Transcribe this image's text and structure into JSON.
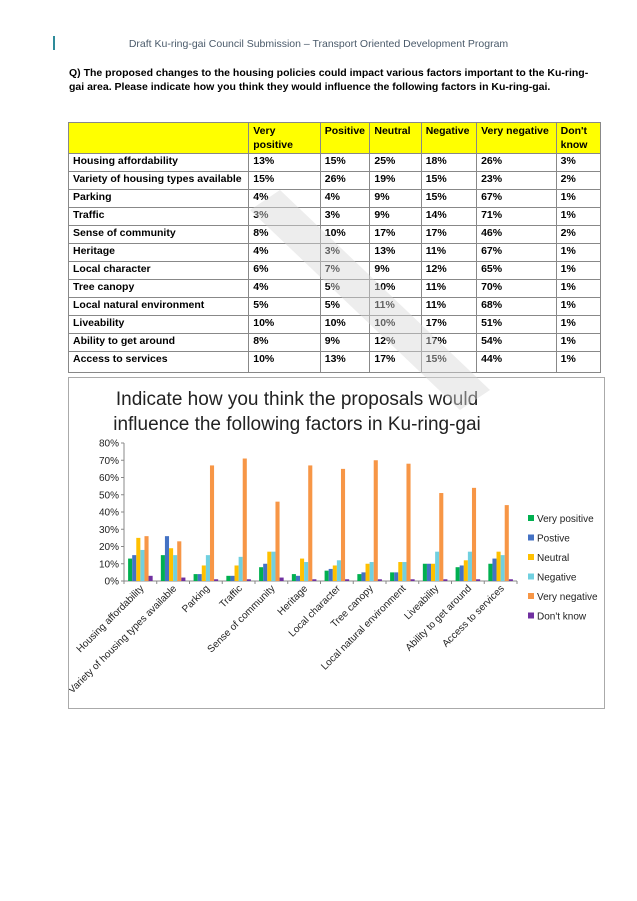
{
  "header": "Draft Ku-ring-gai Council Submission – Transport Oriented Development Program",
  "question": "Q) The proposed changes to the housing policies could impact various factors important to the Ku-ring-gai area. Please indicate how you think they would influence the following factors in Ku-ring-gai.",
  "table": {
    "columns": [
      "",
      "Very positive",
      "Positive",
      "Neutral",
      "Negative",
      "Very negative",
      "Don't know"
    ],
    "rows": [
      {
        "factor": "Housing affordability",
        "values": [
          "13%",
          "15%",
          "25%",
          "18%",
          "26%",
          "3%"
        ]
      },
      {
        "factor": "Variety of housing types available",
        "values": [
          "15%",
          "26%",
          "19%",
          "15%",
          "23%",
          "2%"
        ]
      },
      {
        "factor": "Parking",
        "values": [
          "4%",
          "4%",
          "9%",
          "15%",
          "67%",
          "1%"
        ]
      },
      {
        "factor": "Traffic",
        "values": [
          "3%",
          "3%",
          "9%",
          "14%",
          "71%",
          "1%"
        ]
      },
      {
        "factor": "Sense of community",
        "values": [
          "8%",
          "10%",
          "17%",
          "17%",
          "46%",
          "2%"
        ]
      },
      {
        "factor": "Heritage",
        "values": [
          "4%",
          "3%",
          "13%",
          "11%",
          "67%",
          "1%"
        ]
      },
      {
        "factor": "Local character",
        "values": [
          "6%",
          "7%",
          "9%",
          "12%",
          "65%",
          "1%"
        ]
      },
      {
        "factor": "Tree canopy",
        "values": [
          "4%",
          "5%",
          "10%",
          "11%",
          "70%",
          "1%"
        ]
      },
      {
        "factor": "Local natural environment",
        "values": [
          "5%",
          "5%",
          "11%",
          "11%",
          "68%",
          "1%"
        ]
      },
      {
        "factor": "Liveability",
        "values": [
          "10%",
          "10%",
          "10%",
          "17%",
          "51%",
          "1%"
        ]
      },
      {
        "factor": "Ability to get around",
        "values": [
          "8%",
          "9%",
          "12%",
          "17%",
          "54%",
          "1%"
        ]
      },
      {
        "factor": "Access to services",
        "values": [
          "10%",
          "13%",
          "17%",
          "15%",
          "44%",
          "1%"
        ]
      }
    ]
  },
  "chart_data": {
    "type": "bar",
    "title": "Indicate how you think the proposals would influence the following factors in Ku-ring-gai",
    "title_lines": [
      "Indicate how you think the proposals would",
      "influence the following factors in Ku-ring-gai"
    ],
    "categories": [
      "Housing affordability",
      "Variety of housing types available",
      "Parking",
      "Traffic",
      "Sense of community",
      "Heritage",
      "Local character",
      "Tree canopy",
      "Local natural environment",
      "Liveability",
      "Ability to get around",
      "Access to services"
    ],
    "series": [
      {
        "name": "Very positive",
        "color": "#00b050",
        "values": [
          13,
          15,
          4,
          3,
          8,
          4,
          6,
          4,
          5,
          10,
          8,
          10
        ]
      },
      {
        "name": "Postive",
        "color": "#4472c4",
        "values": [
          15,
          26,
          4,
          3,
          10,
          3,
          7,
          5,
          5,
          10,
          9,
          13
        ]
      },
      {
        "name": "Neutral",
        "color": "#ffc000",
        "values": [
          25,
          19,
          9,
          9,
          17,
          13,
          9,
          10,
          11,
          10,
          12,
          17
        ]
      },
      {
        "name": "Negative",
        "color": "#70d0e0",
        "values": [
          18,
          15,
          15,
          14,
          17,
          11,
          12,
          11,
          11,
          17,
          17,
          15
        ]
      },
      {
        "name": "Very negative",
        "color": "#f79646",
        "values": [
          26,
          23,
          67,
          71,
          46,
          67,
          65,
          70,
          68,
          51,
          54,
          44
        ]
      },
      {
        "name": "Don't know",
        "color": "#7030a0",
        "values": [
          3,
          2,
          1,
          1,
          2,
          1,
          1,
          1,
          1,
          1,
          1,
          1
        ]
      }
    ],
    "ylim": [
      0,
      80
    ],
    "yticks": [
      0,
      10,
      20,
      30,
      40,
      50,
      60,
      70,
      80
    ],
    "ytick_labels": [
      "0%",
      "10%",
      "20%",
      "30%",
      "40%",
      "50%",
      "60%",
      "70%",
      "80%"
    ],
    "grid": false,
    "legend_position": "right"
  },
  "watermark_icon": "draft-watermark-stripe"
}
